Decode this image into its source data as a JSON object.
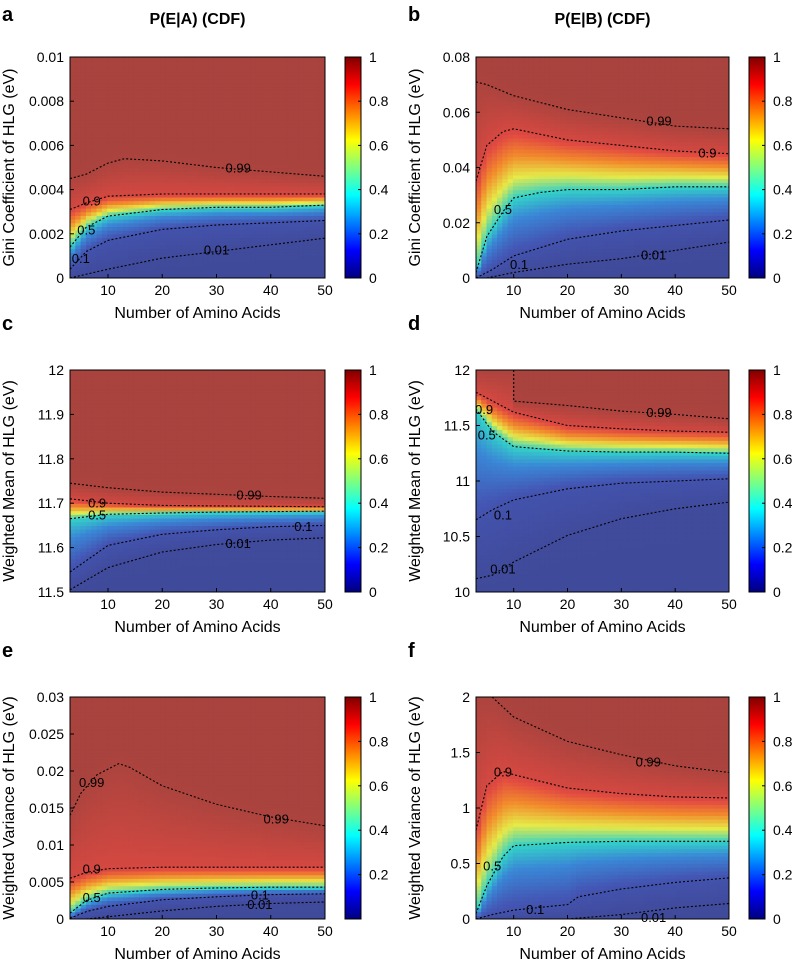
{
  "figure": {
    "colorbar_palette": "jet"
  },
  "chart_data": [
    {
      "panel": "a",
      "type": "heatmap",
      "title": "P(E|A) (CDF)",
      "xlabel": "Number of Amino Acids",
      "ylabel": "Gini Coefficient of HLG (eV)",
      "xlim": [
        3,
        50
      ],
      "ylim": [
        0,
        0.01
      ],
      "xticks": [
        10,
        20,
        30,
        40,
        50
      ],
      "yticks": [
        0,
        0.002,
        0.004,
        0.006,
        0.008,
        0.01
      ],
      "ytick_labels": [
        "0",
        "0.002",
        "0.004",
        "0.006",
        "0.008",
        "0.01"
      ],
      "colorbar": {
        "range": [
          0,
          1
        ],
        "ticks": [
          "0",
          "0.2",
          "0.4",
          "0.6",
          "0.8",
          "1"
        ]
      },
      "contours": [
        {
          "level": "0.01",
          "x": [
            3,
            10,
            20,
            30,
            40,
            50
          ],
          "y": [
            0,
            0.0004,
            0.0009,
            0.0012,
            0.0015,
            0.0018
          ],
          "label_at": [
            30,
            0.0013
          ]
        },
        {
          "level": "0.1",
          "x": [
            3,
            6,
            10,
            20,
            30,
            40,
            50
          ],
          "y": [
            0.0004,
            0.0012,
            0.0017,
            0.0022,
            0.0024,
            0.0025,
            0.0026
          ],
          "label_at": [
            5,
            0.0009
          ]
        },
        {
          "level": "0.5",
          "x": [
            3,
            6,
            10,
            20,
            30,
            40,
            50
          ],
          "y": [
            0.0014,
            0.0023,
            0.0028,
            0.0031,
            0.0032,
            0.0032,
            0.0033
          ],
          "label_at": [
            6,
            0.0022
          ]
        },
        {
          "level": "0.9",
          "x": [
            3,
            6,
            10,
            20,
            30,
            40,
            50
          ],
          "y": [
            0.0031,
            0.0034,
            0.0037,
            0.0038,
            0.0038,
            0.0038,
            0.0038
          ],
          "label_at": [
            7,
            0.0035
          ]
        },
        {
          "level": "0.99",
          "x": [
            3,
            6,
            10,
            13,
            20,
            30,
            40,
            50
          ],
          "y": [
            0.0045,
            0.0047,
            0.0052,
            0.0054,
            0.0053,
            0.005,
            0.0048,
            0.0046
          ],
          "label_at": [
            34,
            0.005
          ]
        }
      ]
    },
    {
      "panel": "b",
      "type": "heatmap",
      "title": "P(E|B) (CDF)",
      "xlabel": "Number of Amino Acids",
      "ylabel": "Gini Coefficient of HLG (eV)",
      "xlim": [
        3,
        50
      ],
      "ylim": [
        0,
        0.08
      ],
      "xticks": [
        10,
        20,
        30,
        40,
        50
      ],
      "yticks": [
        0,
        0.02,
        0.04,
        0.06,
        0.08
      ],
      "ytick_labels": [
        "0",
        "0.02",
        "0.04",
        "0.06",
        "0.08"
      ],
      "colorbar": {
        "range": [
          0,
          1
        ],
        "ticks": [
          "0",
          "0.2",
          "0.4",
          "0.6",
          "0.8",
          "1"
        ]
      },
      "contours": [
        {
          "level": "0.01",
          "x": [
            5,
            10,
            20,
            30,
            40,
            50
          ],
          "y": [
            0.0,
            0.002,
            0.005,
            0.007,
            0.01,
            0.013
          ],
          "label_at": [
            36,
            0.0085
          ]
        },
        {
          "level": "0.1",
          "x": [
            3,
            6,
            10,
            20,
            30,
            40,
            50
          ],
          "y": [
            0.0,
            0.003,
            0.008,
            0.014,
            0.017,
            0.019,
            0.021
          ],
          "label_at": [
            11,
            0.005
          ]
        },
        {
          "level": "0.5",
          "x": [
            3,
            5,
            8,
            10,
            15,
            20,
            30,
            40,
            50
          ],
          "y": [
            0.002,
            0.015,
            0.024,
            0.029,
            0.031,
            0.032,
            0.032,
            0.033,
            0.033
          ],
          "label_at": [
            8,
            0.025
          ]
        },
        {
          "level": "0.9",
          "x": [
            3,
            5,
            8,
            10,
            20,
            30,
            40,
            50
          ],
          "y": [
            0.035,
            0.048,
            0.053,
            0.054,
            0.05,
            0.048,
            0.046,
            0.045
          ],
          "label_at": [
            46,
            0.0455
          ]
        },
        {
          "level": "0.99",
          "x": [
            3,
            5,
            10,
            20,
            30,
            40,
            50
          ],
          "y": [
            0.071,
            0.07,
            0.066,
            0.061,
            0.058,
            0.055,
            0.054
          ],
          "label_at": [
            37,
            0.057
          ]
        }
      ]
    },
    {
      "panel": "c",
      "type": "heatmap",
      "title": "",
      "xlabel": "Number of Amino Acids",
      "ylabel": "Weighted Mean of HLG (eV)",
      "xlim": [
        3,
        50
      ],
      "ylim": [
        11.5,
        12
      ],
      "xticks": [
        10,
        20,
        30,
        40,
        50
      ],
      "yticks": [
        11.5,
        11.6,
        11.7,
        11.8,
        11.9,
        12
      ],
      "ytick_labels": [
        "11.5",
        "11.6",
        "11.7",
        "11.8",
        "11.9",
        "12"
      ],
      "colorbar": {
        "range": [
          0,
          1
        ],
        "ticks": [
          "0",
          "0.2",
          "0.4",
          "0.6",
          "0.8",
          "1"
        ]
      },
      "contours": [
        {
          "level": "0.01",
          "x": [
            3,
            10,
            20,
            30,
            40,
            50
          ],
          "y": [
            11.505,
            11.555,
            11.59,
            11.607,
            11.617,
            11.622
          ],
          "label_at": [
            34,
            11.61
          ]
        },
        {
          "level": "0.1",
          "x": [
            3,
            10,
            20,
            30,
            40,
            50
          ],
          "y": [
            11.545,
            11.605,
            11.63,
            11.64,
            11.647,
            11.65
          ],
          "label_at": [
            46,
            11.649
          ]
        },
        {
          "level": "0.5",
          "x": [
            3,
            10,
            20,
            30,
            40,
            50
          ],
          "y": [
            11.665,
            11.675,
            11.678,
            11.68,
            11.681,
            11.682
          ],
          "label_at": [
            8,
            11.674
          ]
        },
        {
          "level": "0.9",
          "x": [
            3,
            10,
            20,
            30,
            40,
            50
          ],
          "y": [
            11.71,
            11.7,
            11.695,
            11.694,
            11.693,
            11.692
          ],
          "label_at": [
            8,
            11.702
          ]
        },
        {
          "level": "0.99",
          "x": [
            3,
            10,
            20,
            30,
            40,
            50
          ],
          "y": [
            11.745,
            11.735,
            11.725,
            11.72,
            11.715,
            11.711
          ],
          "label_at": [
            36,
            11.72
          ]
        }
      ]
    },
    {
      "panel": "d",
      "type": "heatmap",
      "title": "",
      "xlabel": "Number of Amino Acids",
      "ylabel": "Weighted Mean of HLG (eV)",
      "xlim": [
        3,
        50
      ],
      "ylim": [
        10,
        12
      ],
      "xticks": [
        10,
        20,
        30,
        40,
        50
      ],
      "yticks": [
        10,
        10.5,
        11,
        11.5,
        12
      ],
      "ytick_labels": [
        "10",
        "10.5",
        "11",
        "11.5",
        "12"
      ],
      "colorbar": {
        "range": [
          0,
          1
        ],
        "ticks": [
          "0",
          "0.2",
          "0.4",
          "0.6",
          "0.8",
          "1"
        ]
      },
      "contours": [
        {
          "level": "0.01",
          "x": [
            3,
            6,
            10,
            20,
            30,
            40,
            50
          ],
          "y": [
            10.12,
            10.15,
            10.27,
            10.51,
            10.66,
            10.75,
            10.81
          ],
          "label_at": [
            8,
            10.21
          ]
        },
        {
          "level": "0.1",
          "x": [
            3,
            6,
            10,
            20,
            30,
            40,
            50
          ],
          "y": [
            10.65,
            10.74,
            10.83,
            10.93,
            10.98,
            11.0,
            11.02
          ],
          "label_at": [
            8,
            10.7
          ]
        },
        {
          "level": "0.5",
          "x": [
            3,
            6,
            10,
            20,
            30,
            40,
            50
          ],
          "y": [
            11.65,
            11.45,
            11.31,
            11.27,
            11.26,
            11.26,
            11.25
          ],
          "label_at": [
            5,
            11.42
          ]
        },
        {
          "level": "0.9",
          "x": [
            3,
            10,
            20,
            30,
            40,
            50
          ],
          "y": [
            11.8,
            11.62,
            11.5,
            11.47,
            11.45,
            11.44
          ],
          "label_at": [
            4.5,
            11.65
          ]
        },
        {
          "level": "0.99",
          "x": [
            10,
            10,
            20,
            30,
            40,
            50
          ],
          "y": [
            12.0,
            11.72,
            11.68,
            11.63,
            11.6,
            11.56
          ],
          "label_at": [
            37,
            11.62
          ]
        }
      ]
    },
    {
      "panel": "e",
      "type": "heatmap",
      "title": "",
      "xlabel": "Number of Amino Acids",
      "ylabel": "Weighted Variance of HLG (eV)",
      "xlim": [
        3,
        50
      ],
      "ylim": [
        0,
        0.03
      ],
      "xticks": [
        10,
        20,
        30,
        40,
        50
      ],
      "yticks": [
        0,
        0.005,
        0.01,
        0.015,
        0.02,
        0.025,
        0.03
      ],
      "ytick_labels": [
        "0",
        "0.005",
        "0.01",
        "0.015",
        "0.02",
        "0.025",
        "0.03"
      ],
      "colorbar": {
        "range": [
          0,
          1
        ],
        "ticks": [
          "0.2",
          "0.4",
          "0.6",
          "0.8",
          "1"
        ]
      },
      "contours": [
        {
          "level": "0.01",
          "x": [
            6,
            10,
            20,
            30,
            40,
            50
          ],
          "y": [
            0,
            0.0003,
            0.0011,
            0.0017,
            0.0021,
            0.0023
          ],
          "label_at": [
            38,
            0.002
          ]
        },
        {
          "level": "0.1",
          "x": [
            3,
            6,
            10,
            20,
            30,
            40,
            50
          ],
          "y": [
            0.0001,
            0.001,
            0.0017,
            0.0026,
            0.003,
            0.0033,
            0.0034
          ],
          "label_at": [
            38,
            0.0033
          ]
        },
        {
          "level": "0.5",
          "x": [
            3,
            6,
            10,
            20,
            30,
            40,
            50
          ],
          "y": [
            0.0008,
            0.0025,
            0.0035,
            0.004,
            0.0042,
            0.0043,
            0.0043
          ],
          "label_at": [
            7,
            0.003
          ]
        },
        {
          "level": "0.9",
          "x": [
            3,
            6,
            10,
            20,
            30,
            40,
            50
          ],
          "y": [
            0.0055,
            0.0063,
            0.0068,
            0.007,
            0.007,
            0.007,
            0.007
          ],
          "label_at": [
            7,
            0.0068
          ]
        },
        {
          "level": "0.99",
          "x": [
            3,
            5,
            8,
            12,
            14,
            20,
            30,
            40,
            50
          ],
          "y": [
            0.014,
            0.017,
            0.0195,
            0.021,
            0.0205,
            0.018,
            0.0155,
            0.0138,
            0.0126
          ],
          "label_at": [
            41,
            0.0136
          ]
        }
      ],
      "extra_labels": [
        {
          "text": "0.99",
          "at": [
            7,
            0.0185
          ]
        }
      ]
    },
    {
      "panel": "f",
      "type": "heatmap",
      "title": "",
      "xlabel": "Number of Amino Acids",
      "ylabel": "Weighted Variance of HLG (eV)",
      "xlim": [
        3,
        50
      ],
      "ylim": [
        0,
        2
      ],
      "xticks": [
        10,
        20,
        30,
        40,
        50
      ],
      "yticks": [
        0,
        0.5,
        1,
        1.5,
        2
      ],
      "ytick_labels": [
        "0",
        "0.5",
        "1",
        "1.5",
        "2"
      ],
      "colorbar": {
        "range": [
          0,
          1
        ],
        "ticks": [
          "0",
          "0.2",
          "0.4",
          "0.6",
          "0.8",
          "1"
        ]
      },
      "contours": [
        {
          "level": "0.01",
          "x": [
            20,
            30,
            40,
            50
          ],
          "y": [
            0.0,
            0.04,
            0.1,
            0.14
          ],
          "label_at": [
            36,
            0.02
          ]
        },
        {
          "level": "0.1",
          "x": [
            3,
            6,
            10,
            20,
            22,
            30,
            40,
            50
          ],
          "y": [
            0.0,
            0.04,
            0.08,
            0.13,
            0.2,
            0.27,
            0.33,
            0.37
          ],
          "label_at": [
            14,
            0.09
          ]
        },
        {
          "level": "0.5",
          "x": [
            3,
            5,
            8,
            10,
            20,
            30,
            40,
            50
          ],
          "y": [
            0.05,
            0.3,
            0.56,
            0.66,
            0.69,
            0.7,
            0.7,
            0.7
          ],
          "label_at": [
            6,
            0.48
          ]
        },
        {
          "level": "0.9",
          "x": [
            3,
            5,
            8,
            10,
            20,
            30,
            40,
            50
          ],
          "y": [
            0.8,
            1.2,
            1.33,
            1.3,
            1.18,
            1.13,
            1.1,
            1.09
          ],
          "label_at": [
            8,
            1.33
          ]
        },
        {
          "level": "0.99",
          "x": [
            6,
            10,
            20,
            30,
            40,
            50
          ],
          "y": [
            2.0,
            1.82,
            1.6,
            1.48,
            1.38,
            1.32
          ],
          "label_at": [
            35,
            1.42
          ]
        }
      ]
    }
  ]
}
